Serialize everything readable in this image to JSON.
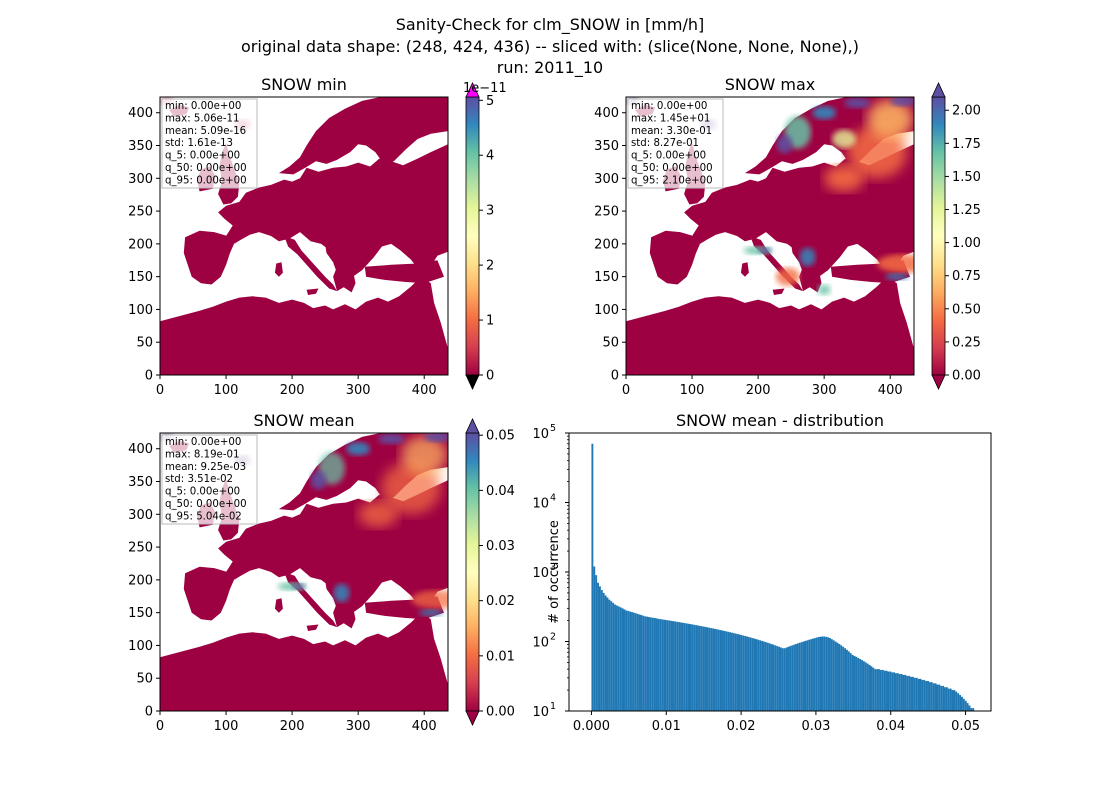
{
  "figure": {
    "title_lines": [
      "Sanity-Check for clm_SNOW in [mm/h]",
      "original data shape: (248, 424, 436) -- sliced with: (slice(None, None, None),)",
      "run: 2011_10"
    ]
  },
  "colors": {
    "land_low": "#9e0142",
    "hist_bar": "#1f77b4",
    "cbar_over_min": "#ff00ff",
    "spectral_r": [
      "#9e0142",
      "#d53e4f",
      "#f46d43",
      "#fdae61",
      "#fee08b",
      "#ffffbf",
      "#e6f598",
      "#abdda4",
      "#66c2a5",
      "#3288bd",
      "#5e4fa2"
    ]
  },
  "chart_data": [
    {
      "type": "heatmap",
      "title": "SNOW min",
      "x_ticks": [
        "0",
        "100",
        "200",
        "300",
        "400"
      ],
      "y_ticks": [
        "0",
        "50",
        "100",
        "150",
        "200",
        "250",
        "300",
        "350",
        "400"
      ],
      "xlim": [
        0,
        436
      ],
      "ylim": [
        0,
        424
      ],
      "colorbar": {
        "ticks": [
          "0",
          "1",
          "2",
          "3",
          "4",
          "5"
        ],
        "range": [
          0,
          5.06
        ],
        "offset_label": "1e−11",
        "extend": "both"
      },
      "stats": [
        "min: 0.00e+00",
        "max: 5.06e-11",
        "mean: 5.09e-16",
        "std: 1.61e-13",
        "q_5: 0.00e+00",
        "q_50: 0.00e+00",
        "q_95: 0.00e+00"
      ]
    },
    {
      "type": "heatmap",
      "title": "SNOW max",
      "x_ticks": [
        "0",
        "100",
        "200",
        "300",
        "400"
      ],
      "y_ticks": [
        "0",
        "50",
        "100",
        "150",
        "200",
        "250",
        "300",
        "350",
        "400"
      ],
      "xlim": [
        0,
        436
      ],
      "ylim": [
        0,
        424
      ],
      "colorbar": {
        "ticks": [
          "0.00",
          "0.25",
          "0.50",
          "0.75",
          "1.00",
          "1.25",
          "1.50",
          "1.75",
          "2.00"
        ],
        "range": [
          0,
          2.1
        ],
        "extend": "both"
      },
      "stats": [
        "min: 0.00e+00",
        "max: 1.45e+01",
        "mean: 3.30e-01",
        "std: 8.27e-01",
        "q_5: 0.00e+00",
        "q_50: 0.00e+00",
        "q_95: 2.10e+00"
      ]
    },
    {
      "type": "heatmap",
      "title": "SNOW mean",
      "x_ticks": [
        "0",
        "100",
        "200",
        "300",
        "400"
      ],
      "y_ticks": [
        "0",
        "50",
        "100",
        "150",
        "200",
        "250",
        "300",
        "350",
        "400"
      ],
      "xlim": [
        0,
        436
      ],
      "ylim": [
        0,
        424
      ],
      "colorbar": {
        "ticks": [
          "0.00",
          "0.01",
          "0.02",
          "0.03",
          "0.04",
          "0.05"
        ],
        "range": [
          0,
          0.0504
        ],
        "extend": "both"
      },
      "stats": [
        "min: 0.00e+00",
        "max: 8.19e-01",
        "mean: 9.25e-03",
        "std: 3.51e-02",
        "q_5: 0.00e+00",
        "q_50: 0.00e+00",
        "q_95: 5.04e-02"
      ]
    },
    {
      "type": "bar",
      "title": "SNOW mean - distribution",
      "xlabel": "",
      "ylabel": "# of occurrence",
      "y_scale": "log",
      "x_ticks": [
        "0.000",
        "0.01",
        "0.02",
        "0.03",
        "0.04",
        "0.05"
      ],
      "y_tick_exponents": [
        1,
        2,
        3,
        4,
        5
      ],
      "xlim": [
        -0.003,
        0.0534
      ],
      "ylim": [
        10,
        100000
      ],
      "bins": {
        "start": 0.0,
        "width": 0.000252,
        "values": [
          70000,
          1200,
          900,
          700,
          620,
          550,
          500,
          460,
          430,
          400,
          380,
          360,
          340,
          330,
          320,
          310,
          300,
          290,
          280,
          275,
          270,
          265,
          260,
          255,
          250,
          245,
          240,
          235,
          230,
          228,
          225,
          222,
          220,
          218,
          215,
          212,
          210,
          208,
          206,
          204,
          202,
          200,
          198,
          196,
          194,
          192,
          190,
          188,
          186,
          184,
          182,
          180,
          178,
          176,
          174,
          172,
          170,
          168,
          166,
          164,
          162,
          160,
          158,
          156,
          154,
          152,
          150,
          148,
          146,
          144,
          142,
          140,
          138,
          136,
          134,
          132,
          130,
          128,
          126,
          124,
          122,
          120,
          118,
          116,
          114,
          112,
          110,
          108,
          106,
          104,
          102,
          100,
          98,
          96,
          94,
          92,
          90,
          88,
          86,
          84,
          82,
          80,
          80,
          82,
          84,
          86,
          88,
          90,
          92,
          94,
          96,
          98,
          100,
          102,
          104,
          106,
          108,
          110,
          112,
          114,
          116,
          117,
          118,
          118,
          117,
          115,
          112,
          108,
          104,
          100,
          96,
          92,
          88,
          84,
          80,
          76,
          72,
          68,
          64,
          62,
          60,
          58,
          56,
          54,
          52,
          50,
          48,
          46,
          44,
          42,
          40,
          40,
          40,
          39,
          39,
          38,
          38,
          37,
          37,
          36,
          36,
          35,
          35,
          34,
          34,
          33,
          33,
          32,
          32,
          31,
          31,
          30,
          30,
          29,
          29,
          28,
          28,
          27,
          27,
          26,
          26,
          25,
          25,
          24,
          24,
          23,
          23,
          22,
          22,
          21,
          21,
          20,
          20,
          19,
          18,
          17,
          16,
          15,
          14,
          13,
          12,
          11,
          11,
          10,
          10,
          10
        ]
      }
    }
  ]
}
